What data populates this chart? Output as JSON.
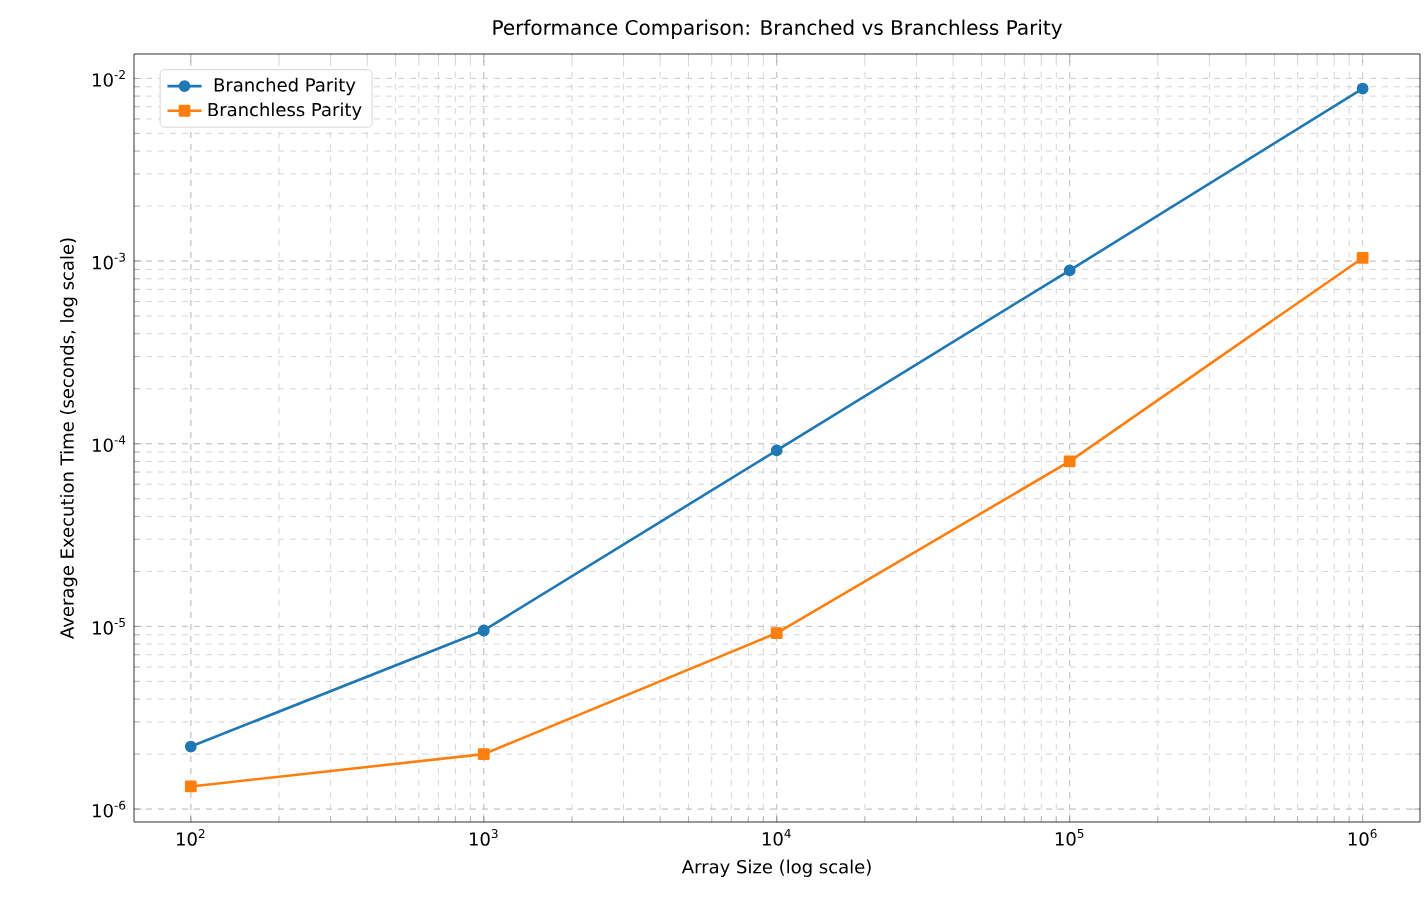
{
  "chart_data": {
    "type": "line",
    "title": "Performance Comparison: Branched vs Branchless Parity",
    "xlabel": "Array Size (log scale)",
    "ylabel": "Average Execution Time (seconds, log scale)",
    "x": [
      100,
      1000,
      10000,
      100000,
      1000000
    ],
    "series": [
      {
        "name": "Branched Parity",
        "color": "#1f77b4",
        "marker": "circle",
        "values": [
          2.2e-06,
          9.5e-06,
          9.2e-05,
          0.00089,
          0.0088
        ]
      },
      {
        "name": "Branchless Parity",
        "color": "#ff7f0e",
        "marker": "square",
        "values": [
          1.33e-06,
          2e-06,
          9.2e-06,
          8e-05,
          0.00104
        ]
      }
    ],
    "log": "xy",
    "xlim": [
      64,
      1570000
    ],
    "ylim": [
      8.5e-07,
      0.0136
    ],
    "xticks": [
      {
        "value": 100,
        "label": "10$^{2}$"
      },
      {
        "value": 1000,
        "label": "10$^{3}$"
      },
      {
        "value": 10000,
        "label": "10$^{4}$"
      },
      {
        "value": 100000,
        "label": "10$^{5}$"
      },
      {
        "value": 1000000,
        "label": "10$^{6}$"
      }
    ],
    "yticks": [
      {
        "value": 1e-06,
        "label": "10$^{-6}$"
      },
      {
        "value": 1e-05,
        "label": "10$^{-5}$"
      },
      {
        "value": 0.0001,
        "label": "10$^{-4}$"
      },
      {
        "value": 0.001,
        "label": "10$^{-3}$"
      },
      {
        "value": 0.01,
        "label": "10$^{-2}$"
      }
    ],
    "grid": true,
    "legend": "top left"
  }
}
